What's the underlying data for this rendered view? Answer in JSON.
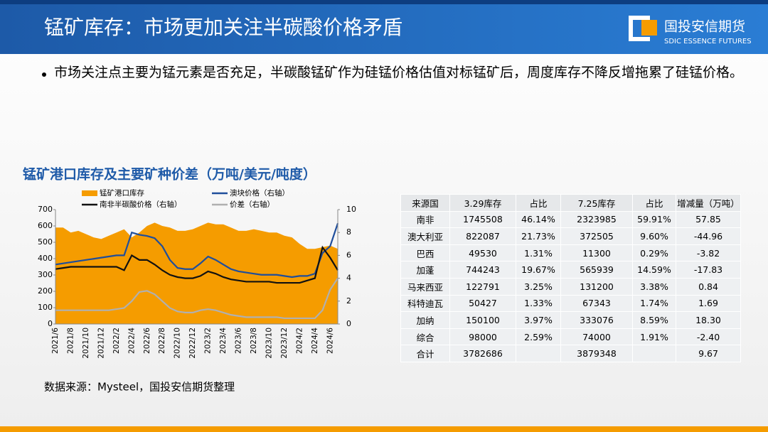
{
  "header": {
    "title": "锰矿库存：市场更加关注半碳酸价格矛盾",
    "logo_cn": "国投安信期货",
    "logo_en": "SDIC ESSENCE FUTURES"
  },
  "bullet": "市场关注点主要为锰元素是否充足，半碳酸锰矿作为硅锰价格估值对标锰矿后，周度库存不降反增拖累了硅锰价格。",
  "chart_data": {
    "type": "area-line",
    "title": "锰矿港口库存及主要矿种价差（万吨/美元/吨度）",
    "categories": [
      "2021/6",
      null,
      "2021/8",
      null,
      "2021/10",
      null,
      "2021/12",
      null,
      "2022/2",
      null,
      "2022/4",
      null,
      "2022/6",
      null,
      "2022/8",
      null,
      "2022/10",
      null,
      "2022/12",
      null,
      "2023/2",
      null,
      "2023/4",
      null,
      "2023/6",
      null,
      "2023/8",
      null,
      "2023/10",
      null,
      "2023/12",
      null,
      "2024/2",
      null,
      "2024/4",
      null,
      "2024/6",
      null
    ],
    "series": [
      {
        "name": "锰矿港口库存",
        "color": "#f59c00",
        "kind": "area",
        "values": [
          590,
          590,
          560,
          570,
          550,
          530,
          520,
          540,
          560,
          580,
          530,
          560,
          600,
          620,
          600,
          590,
          570,
          570,
          580,
          600,
          620,
          610,
          610,
          590,
          570,
          570,
          580,
          570,
          560,
          560,
          540,
          530,
          490,
          460,
          460,
          470,
          480,
          460
        ]
      },
      {
        "name": "澳块价格（右轴）",
        "color": "#1f4e9c",
        "axis": "y2",
        "values": [
          5.2,
          5.3,
          5.4,
          5.5,
          5.6,
          5.7,
          5.8,
          5.9,
          6.0,
          6.0,
          8.0,
          7.8,
          7.7,
          7.5,
          6.8,
          5.6,
          4.9,
          4.8,
          4.8,
          5.3,
          5.9,
          5.6,
          5.2,
          4.8,
          4.6,
          4.5,
          4.4,
          4.3,
          4.3,
          4.3,
          4.2,
          4.1,
          4.2,
          4.2,
          4.4,
          6.2,
          6.8,
          8.8
        ]
      },
      {
        "name": "南非半碳酸价格（右轴）",
        "color": "#111111",
        "axis": "y2",
        "values": [
          4.8,
          4.9,
          5.0,
          5.0,
          5.0,
          5.0,
          5.0,
          5.0,
          5.0,
          4.7,
          6.0,
          5.6,
          5.6,
          5.2,
          4.7,
          4.3,
          4.1,
          4.0,
          4.0,
          4.2,
          4.6,
          4.4,
          4.1,
          3.9,
          3.8,
          3.7,
          3.7,
          3.7,
          3.7,
          3.6,
          3.6,
          3.6,
          3.6,
          3.8,
          4.0,
          6.7,
          5.8,
          4.7
        ]
      },
      {
        "name": "价差（右轴）",
        "color": "#b0b0b0",
        "axis": "y2",
        "values": [
          1.2,
          1.2,
          1.2,
          1.2,
          1.2,
          1.2,
          1.2,
          1.2,
          1.3,
          1.4,
          2.0,
          2.8,
          2.9,
          2.6,
          2.0,
          1.4,
          1.1,
          1.0,
          1.0,
          1.2,
          1.3,
          1.2,
          1.0,
          0.8,
          0.7,
          0.6,
          0.6,
          0.6,
          0.6,
          0.6,
          0.5,
          0.5,
          0.5,
          0.5,
          0.5,
          1.2,
          3.0,
          4.0
        ]
      }
    ],
    "ylim": [
      0,
      700
    ],
    "yticks": [
      0,
      100,
      200,
      300,
      400,
      500,
      600,
      700
    ],
    "y2lim": [
      0,
      10
    ],
    "y2ticks": [
      0,
      2,
      4,
      6,
      8,
      10
    ]
  },
  "table": {
    "header": [
      "来源国",
      "3.29库存",
      "占比",
      "7.25库存",
      "占比",
      "增减量（万吨）"
    ],
    "rows": [
      [
        "南非",
        "1745508",
        "46.14%",
        "2323985",
        "59.91%",
        "57.85"
      ],
      [
        "澳大利亚",
        "822087",
        "21.73%",
        "372505",
        "9.60%",
        "-44.96"
      ],
      [
        "巴西",
        "49530",
        "1.31%",
        "11300",
        "0.29%",
        "-3.82"
      ],
      [
        "加蓬",
        "744243",
        "19.67%",
        "565939",
        "14.59%",
        "-17.83"
      ],
      [
        "马来西亚",
        "122791",
        "3.25%",
        "131200",
        "3.38%",
        "0.84"
      ],
      [
        "科特迪瓦",
        "50427",
        "1.33%",
        "67343",
        "1.74%",
        "1.69"
      ],
      [
        "加纳",
        "150100",
        "3.97%",
        "333076",
        "8.59%",
        "18.30"
      ],
      [
        "综合",
        "98000",
        "2.59%",
        "74000",
        "1.91%",
        "-2.40"
      ],
      [
        "合计",
        "3782686",
        "",
        "3879348",
        "",
        "9.67"
      ]
    ]
  },
  "source": "数据来源：Mysteel，国投安信期货整理"
}
